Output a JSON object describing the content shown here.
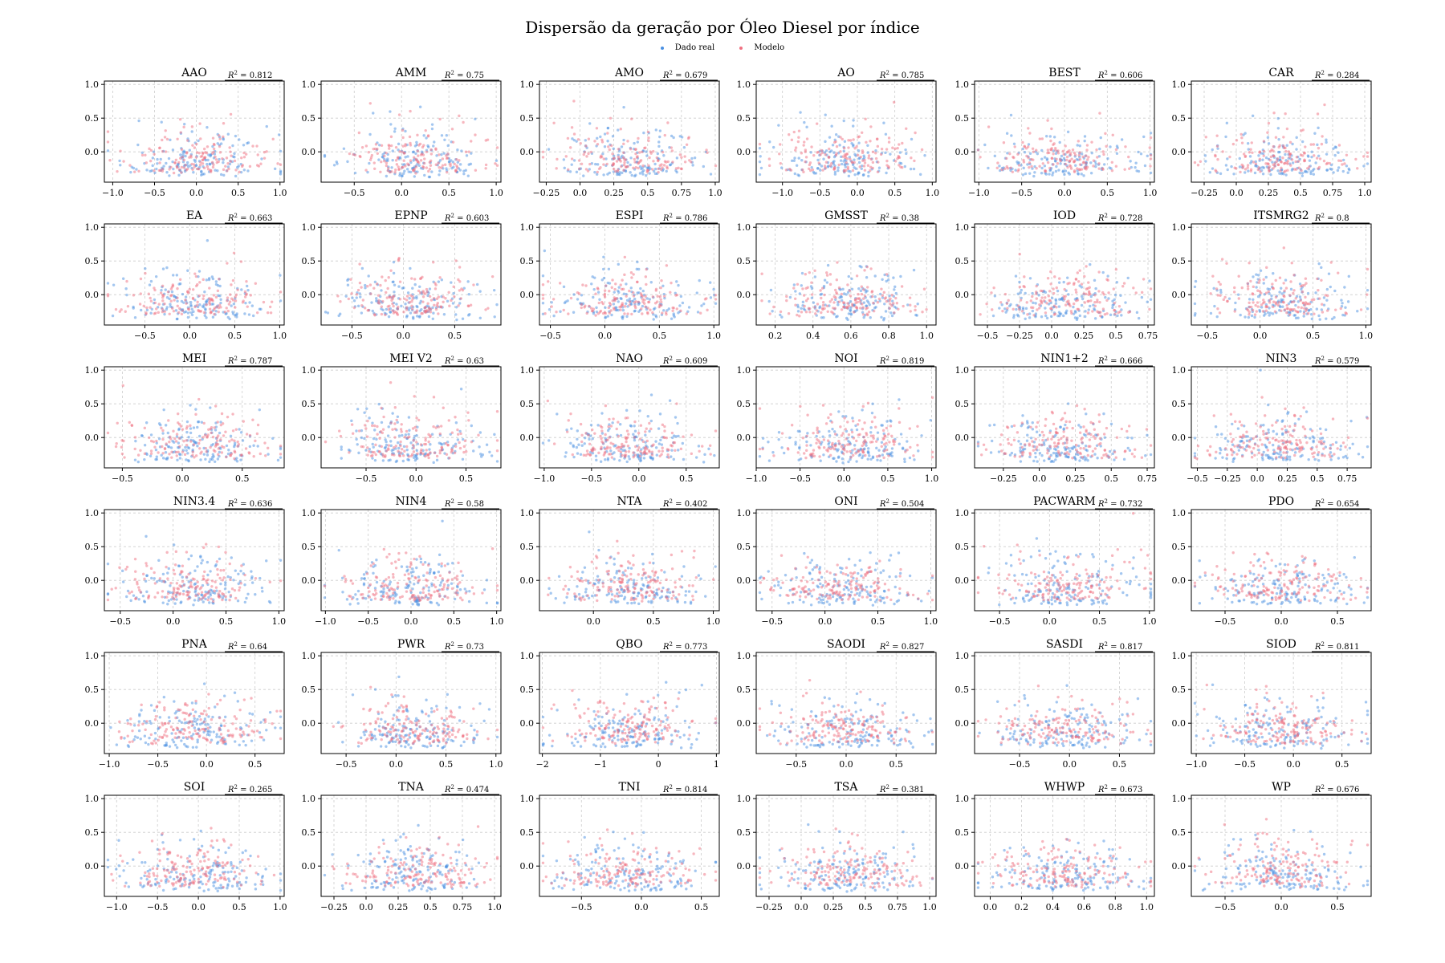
{
  "chart_data": {
    "type": "scatter",
    "title": "Dispersão da geração por Óleo Diesel por índice",
    "legend": [
      {
        "label": "Dado real",
        "color": "#4a90e2"
      },
      {
        "label": "Modelo",
        "color": "#f07080"
      }
    ],
    "legend_placement": "top-center",
    "grid": true,
    "ylim": [
      -0.45,
      1.05
    ],
    "yticks": [
      0.0,
      0.5,
      1.0
    ],
    "series_names": [
      "Dado real",
      "Modelo"
    ],
    "panels": [
      {
        "index": "AAO",
        "r2": "0.812",
        "xlim": [
          -1.1,
          1.05
        ],
        "xticks": [
          -1.0,
          -0.5,
          0.0,
          0.5,
          1.0
        ]
      },
      {
        "index": "AMM",
        "r2": "0.75",
        "xlim": [
          -0.85,
          1.05
        ],
        "xticks": [
          -0.5,
          0.0,
          0.5,
          1.0
        ]
      },
      {
        "index": "AMO",
        "r2": "0.679",
        "xlim": [
          -0.3,
          1.03
        ],
        "xticks": [
          -0.25,
          0.0,
          0.25,
          0.5,
          0.75,
          1.0
        ]
      },
      {
        "index": "AO",
        "r2": "0.785",
        "xlim": [
          -1.35,
          1.05
        ],
        "xticks": [
          -1.0,
          -0.5,
          0.0,
          0.5,
          1.0
        ]
      },
      {
        "index": "BEST",
        "r2": "0.606",
        "xlim": [
          -1.05,
          1.05
        ],
        "xticks": [
          -1.0,
          -0.5,
          0.0,
          0.5,
          1.0
        ]
      },
      {
        "index": "CAR",
        "r2": "0.284",
        "xlim": [
          -0.35,
          1.05
        ],
        "xticks": [
          -0.25,
          0.0,
          0.25,
          0.5,
          0.75,
          1.0
        ]
      },
      {
        "index": "EA",
        "r2": "0.663",
        "xlim": [
          -0.95,
          1.05
        ],
        "xticks": [
          -0.5,
          0.0,
          0.5,
          1.0
        ]
      },
      {
        "index": "EPNP",
        "r2": "0.603",
        "xlim": [
          -0.8,
          0.95
        ],
        "xticks": [
          -0.5,
          0.0,
          0.5
        ]
      },
      {
        "index": "ESPI",
        "r2": "0.786",
        "xlim": [
          -0.6,
          1.05
        ],
        "xticks": [
          -0.5,
          0.0,
          0.5,
          1.0
        ]
      },
      {
        "index": "GMSST",
        "r2": "0.38",
        "xlim": [
          0.1,
          1.05
        ],
        "xticks": [
          0.2,
          0.4,
          0.6,
          0.8,
          1.0
        ]
      },
      {
        "index": "IOD",
        "r2": "0.728",
        "xlim": [
          -0.6,
          0.8
        ],
        "xticks": [
          -0.5,
          -0.25,
          0.0,
          0.25,
          0.5,
          0.75
        ]
      },
      {
        "index": "ITSMRG2",
        "r2": "0.8",
        "xlim": [
          -0.65,
          1.05
        ],
        "xticks": [
          -0.5,
          0.0,
          0.5,
          1.0
        ]
      },
      {
        "index": "MEI",
        "r2": "0.787",
        "xlim": [
          -0.65,
          0.85
        ],
        "xticks": [
          -0.5,
          0.0,
          0.5
        ]
      },
      {
        "index": "MEI V2",
        "r2": "0.63",
        "xlim": [
          -0.95,
          0.85
        ],
        "xticks": [
          -0.5,
          0.0,
          0.5
        ]
      },
      {
        "index": "NAO",
        "r2": "0.609",
        "xlim": [
          -1.05,
          0.85
        ],
        "xticks": [
          -1.0,
          -0.5,
          0.0,
          0.5
        ]
      },
      {
        "index": "NOI",
        "r2": "0.819",
        "xlim": [
          -1.0,
          1.05
        ],
        "xticks": [
          -1.0,
          -0.5,
          0.0,
          0.5,
          1.0
        ]
      },
      {
        "index": "NIN1+2",
        "r2": "0.666",
        "xlim": [
          -0.45,
          0.8
        ],
        "xticks": [
          -0.25,
          0.0,
          0.25,
          0.5,
          0.75
        ]
      },
      {
        "index": "NIN3",
        "r2": "0.579",
        "xlim": [
          -0.55,
          0.95
        ],
        "xticks": [
          -0.5,
          -0.25,
          0.0,
          0.25,
          0.5,
          0.75
        ]
      },
      {
        "index": "NIN3.4",
        "r2": "0.636",
        "xlim": [
          -0.65,
          1.05
        ],
        "xticks": [
          -0.5,
          0.0,
          0.5,
          1.0
        ]
      },
      {
        "index": "NIN4",
        "r2": "0.58",
        "xlim": [
          -1.05,
          1.05
        ],
        "xticks": [
          -1.0,
          -0.5,
          0.0,
          0.5,
          1.0
        ]
      },
      {
        "index": "NTA",
        "r2": "0.402",
        "xlim": [
          -0.45,
          1.05
        ],
        "xticks": [
          0.0,
          0.5,
          1.0
        ]
      },
      {
        "index": "ONI",
        "r2": "0.504",
        "xlim": [
          -0.65,
          1.05
        ],
        "xticks": [
          -0.5,
          0.0,
          0.5,
          1.0
        ]
      },
      {
        "index": "PACWARM",
        "r2": "0.732",
        "xlim": [
          -0.75,
          1.05
        ],
        "xticks": [
          -0.5,
          0.0,
          0.5,
          1.0
        ]
      },
      {
        "index": "PDO",
        "r2": "0.654",
        "xlim": [
          -0.8,
          0.8
        ],
        "xticks": [
          -0.5,
          0.0,
          0.5
        ]
      },
      {
        "index": "PNA",
        "r2": "0.64",
        "xlim": [
          -1.05,
          0.8
        ],
        "xticks": [
          -1.0,
          -0.5,
          0.0,
          0.5
        ]
      },
      {
        "index": "PWR",
        "r2": "0.73",
        "xlim": [
          -0.75,
          1.05
        ],
        "xticks": [
          -0.5,
          0.0,
          0.5,
          1.0
        ]
      },
      {
        "index": "QBO",
        "r2": "0.773",
        "xlim": [
          -2.05,
          1.05
        ],
        "xticks": [
          -2,
          -1,
          0,
          1
        ]
      },
      {
        "index": "SAODI",
        "r2": "0.827",
        "xlim": [
          -0.9,
          0.9
        ],
        "xticks": [
          -0.5,
          0.0,
          0.5
        ]
      },
      {
        "index": "SASDI",
        "r2": "0.817",
        "xlim": [
          -0.95,
          0.85
        ],
        "xticks": [
          -0.5,
          0.0,
          0.5
        ]
      },
      {
        "index": "SIOD",
        "r2": "0.811",
        "xlim": [
          -1.05,
          0.8
        ],
        "xticks": [
          -1.0,
          -0.5,
          0.0,
          0.5
        ]
      },
      {
        "index": "SOI",
        "r2": "0.265",
        "xlim": [
          -1.15,
          1.05
        ],
        "xticks": [
          -1.0,
          -0.5,
          0.0,
          0.5,
          1.0
        ]
      },
      {
        "index": "TNA",
        "r2": "0.474",
        "xlim": [
          -0.35,
          1.05
        ],
        "xticks": [
          -0.25,
          0.0,
          0.25,
          0.5,
          0.75,
          1.0
        ]
      },
      {
        "index": "TNI",
        "r2": "0.814",
        "xlim": [
          -0.85,
          0.65
        ],
        "xticks": [
          -0.5,
          0.0,
          0.5
        ]
      },
      {
        "index": "TSA",
        "r2": "0.381",
        "xlim": [
          -0.35,
          1.05
        ],
        "xticks": [
          -0.25,
          0.0,
          0.25,
          0.5,
          0.75,
          1.0
        ]
      },
      {
        "index": "WHWP",
        "r2": "0.673",
        "xlim": [
          -0.1,
          1.05
        ],
        "xticks": [
          0.0,
          0.2,
          0.4,
          0.6,
          0.8,
          1.0
        ]
      },
      {
        "index": "WP",
        "r2": "0.676",
        "xlim": [
          -0.8,
          0.8
        ],
        "xticks": [
          -0.5,
          0.0,
          0.5
        ]
      }
    ]
  }
}
